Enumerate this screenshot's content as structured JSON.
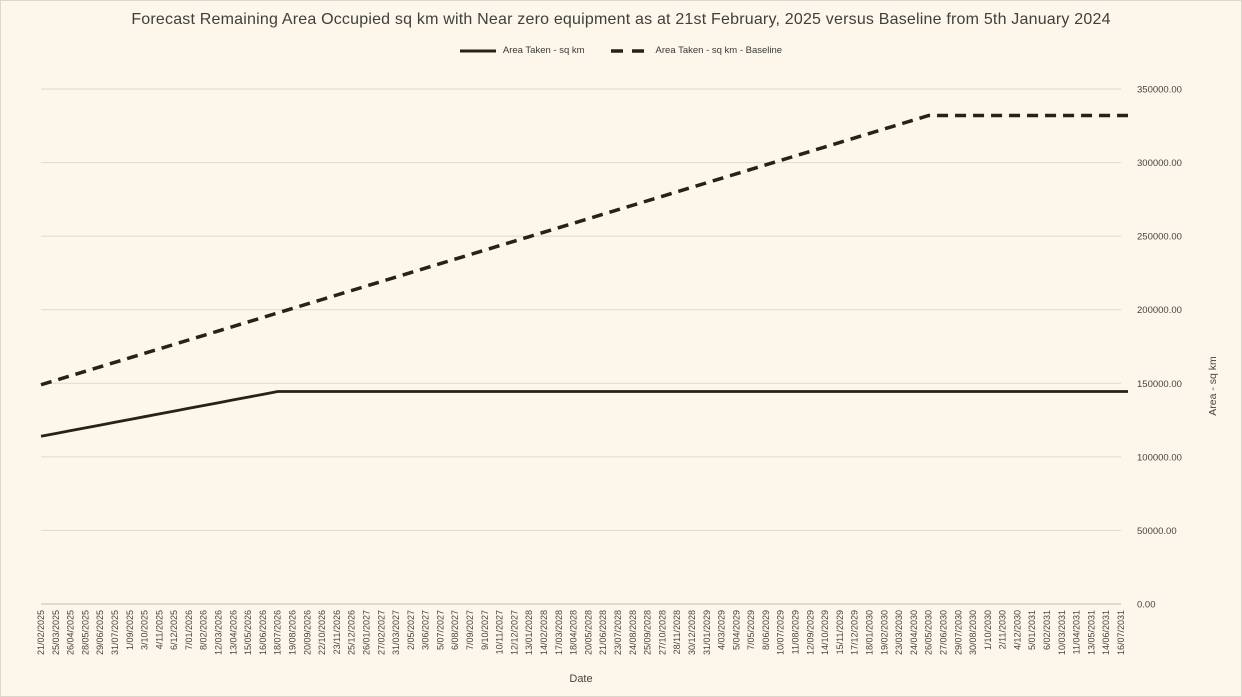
{
  "chart": {
    "title": "Forecast Remaining Area Occupied sq km with Near zero equipment as at 21st February, 2025 versus Baseline from 5th January 2024",
    "xlabel": "Date",
    "ylabel": "Area - sq km"
  },
  "chart_data": {
    "type": "line",
    "title": "Forecast Remaining Area Occupied sq km with Near zero equipment as at 21st February, 2025 versus Baseline from 5th January 2024",
    "xlabel": "Date",
    "ylabel": "Area - sq km",
    "ylim": [
      0,
      350000
    ],
    "y_ticks": [
      0,
      50000,
      100000,
      150000,
      200000,
      250000,
      300000,
      350000
    ],
    "y_tick_format": "fixed2",
    "grid": "horizontal",
    "legend_position": "top",
    "categories": [
      "21/02/2025",
      "25/03/2025",
      "26/04/2025",
      "28/05/2025",
      "29/06/2025",
      "31/07/2025",
      "1/09/2025",
      "3/10/2025",
      "4/11/2025",
      "6/12/2025",
      "7/01/2026",
      "8/02/2026",
      "12/03/2026",
      "13/04/2026",
      "15/05/2026",
      "16/06/2026",
      "18/07/2026",
      "19/08/2026",
      "20/09/2026",
      "22/10/2026",
      "23/11/2026",
      "25/12/2026",
      "26/01/2027",
      "27/02/2027",
      "31/03/2027",
      "2/05/2027",
      "3/06/2027",
      "5/07/2027",
      "6/08/2027",
      "7/09/2027",
      "9/10/2027",
      "10/11/2027",
      "12/12/2027",
      "13/01/2028",
      "14/02/2028",
      "17/03/2028",
      "18/04/2028",
      "20/05/2028",
      "21/06/2028",
      "23/07/2028",
      "24/08/2028",
      "25/09/2028",
      "27/10/2028",
      "28/11/2028",
      "30/12/2028",
      "31/01/2029",
      "4/03/2029",
      "5/04/2029",
      "7/05/2029",
      "8/06/2029",
      "10/07/2029",
      "11/08/2029",
      "12/09/2029",
      "14/10/2029",
      "15/11/2029",
      "17/12/2029",
      "18/01/2030",
      "19/02/2030",
      "23/03/2030",
      "24/04/2030",
      "26/05/2030",
      "27/06/2030",
      "29/07/2030",
      "30/08/2030",
      "1/10/2030",
      "2/11/2030",
      "4/12/2030",
      "5/01/2031",
      "6/02/2031",
      "10/03/2031",
      "11/04/2031",
      "13/05/2031",
      "14/06/2031",
      "16/07/2031"
    ],
    "series": [
      {
        "name": "Area Taken - sq km",
        "style": "solid",
        "values": [
          114000,
          115900,
          117800,
          119700,
          121600,
          123500,
          125400,
          127300,
          129200,
          131100,
          133000,
          134900,
          136800,
          138700,
          140600,
          142500,
          144400,
          144400,
          144400,
          144400,
          144400,
          144400,
          144400,
          144400,
          144400,
          144400,
          144400,
          144400,
          144400,
          144400,
          144400,
          144400,
          144400,
          144400,
          144400,
          144400,
          144400,
          144400,
          144400,
          144400,
          144400,
          144400,
          144400,
          144400,
          144400,
          144400,
          144400,
          144400,
          144400,
          144400,
          144400,
          144400,
          144400,
          144400,
          144400,
          144400,
          144400,
          144400,
          144400,
          144400,
          144400,
          144400,
          144400,
          144400,
          144400,
          144400,
          144400,
          144400,
          144400,
          144400,
          144400,
          144400,
          144400,
          144400
        ]
      },
      {
        "name": "Area Taken - sq km - Baseline",
        "style": "dashed",
        "values": [
          149000,
          152050,
          155100,
          158150,
          161200,
          164250,
          167300,
          170350,
          173400,
          176450,
          179500,
          182550,
          185600,
          188650,
          191700,
          194750,
          197800,
          200850,
          203900,
          206950,
          210000,
          213050,
          216100,
          219150,
          222200,
          225250,
          228300,
          231350,
          234400,
          237450,
          240500,
          243550,
          246600,
          249650,
          252700,
          255750,
          258800,
          261850,
          264900,
          267950,
          271000,
          274050,
          277100,
          280150,
          283200,
          286250,
          289300,
          292350,
          295400,
          298450,
          301500,
          304550,
          307600,
          310650,
          313700,
          316750,
          319800,
          322850,
          325900,
          328950,
          332000,
          332000,
          332000,
          332000,
          332000,
          332000,
          332000,
          332000,
          332000,
          332000,
          332000,
          332000,
          332000,
          332000
        ]
      }
    ],
    "colors": {
      "line": "#292114",
      "grid": "#DEDACB",
      "axis": "#C2BEB0",
      "background": "#FCF7EA",
      "text": "#45443F",
      "title": "#3F3F3C"
    }
  }
}
